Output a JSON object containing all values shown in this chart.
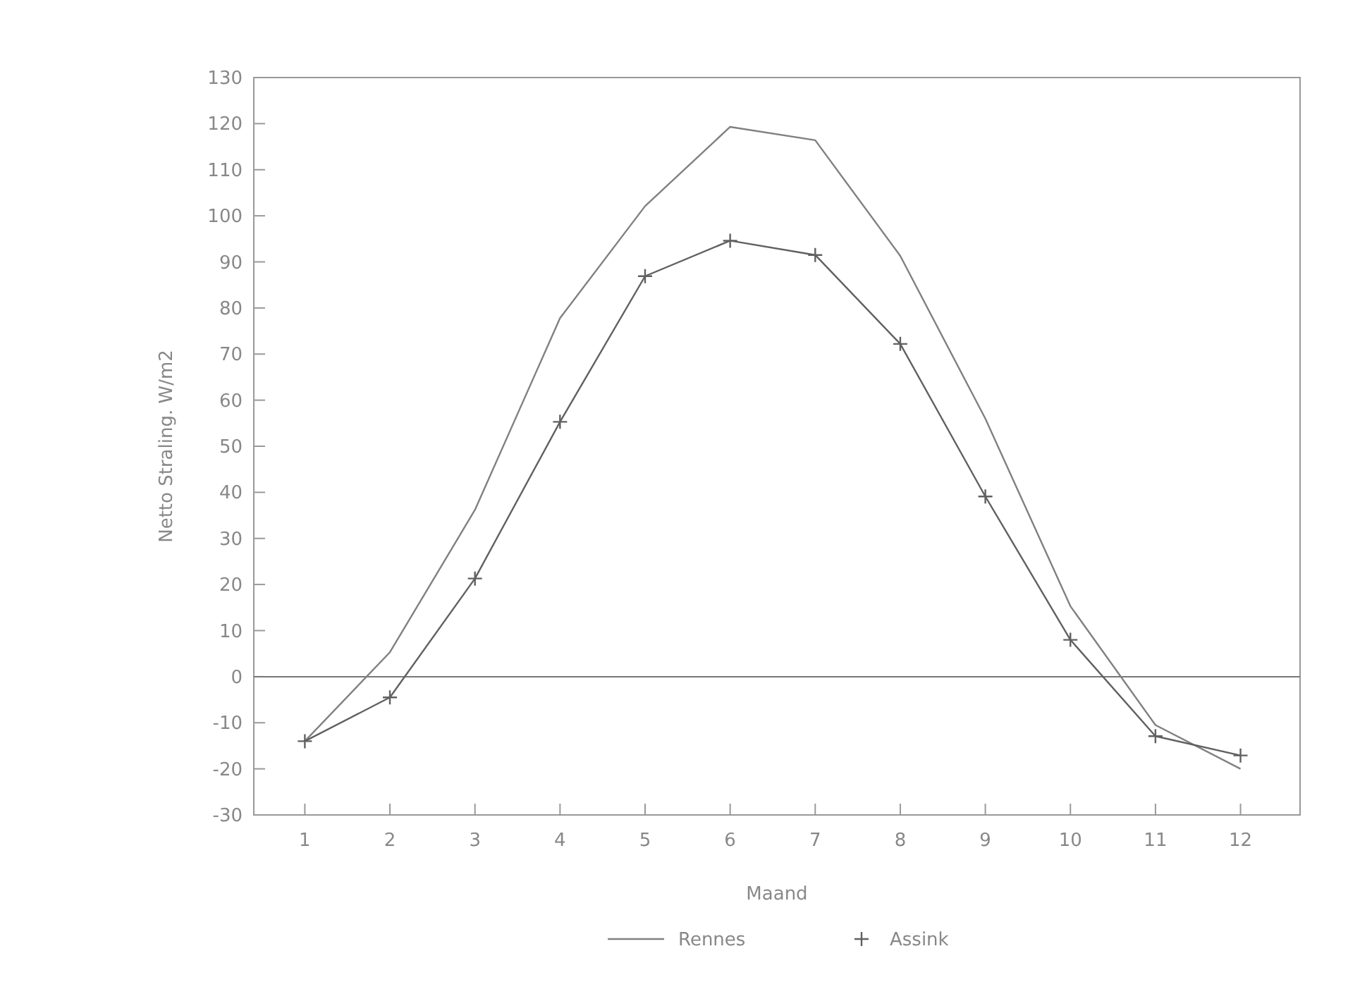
{
  "chart_data": {
    "type": "line",
    "xlabel": "Maand",
    "ylabel": "Netto Straling. W/m2",
    "x": [
      1,
      2,
      3,
      4,
      5,
      6,
      7,
      8,
      9,
      10,
      11,
      12
    ],
    "xlim": [
      0.4,
      12.7
    ],
    "xticks": [
      1,
      2,
      3,
      4,
      5,
      6,
      7,
      8,
      9,
      10,
      11,
      12
    ],
    "ylim": [
      -30,
      130
    ],
    "yticks": [
      -30,
      -20,
      -10,
      0,
      10,
      20,
      30,
      40,
      50,
      60,
      70,
      80,
      90,
      100,
      110,
      120,
      130
    ],
    "grid": false,
    "legend": "bottom",
    "ref_lines": [
      {
        "axis": "y",
        "value": 0,
        "color": "#777777"
      }
    ],
    "series": [
      {
        "name": "Rennes",
        "color": "#808080",
        "marker": "none",
        "values": [
          -14,
          5.3,
          36.2,
          77.8,
          102.1,
          119.3,
          116.4,
          91.3,
          56,
          15.3,
          -10.5,
          -20
        ]
      },
      {
        "name": "Assink",
        "color": "#606060",
        "marker": "cross",
        "values": [
          -14,
          -4.5,
          21.3,
          55.3,
          86.9,
          94.6,
          91.5,
          72.2,
          39.1,
          8,
          -12.9,
          -17.1
        ]
      }
    ]
  }
}
